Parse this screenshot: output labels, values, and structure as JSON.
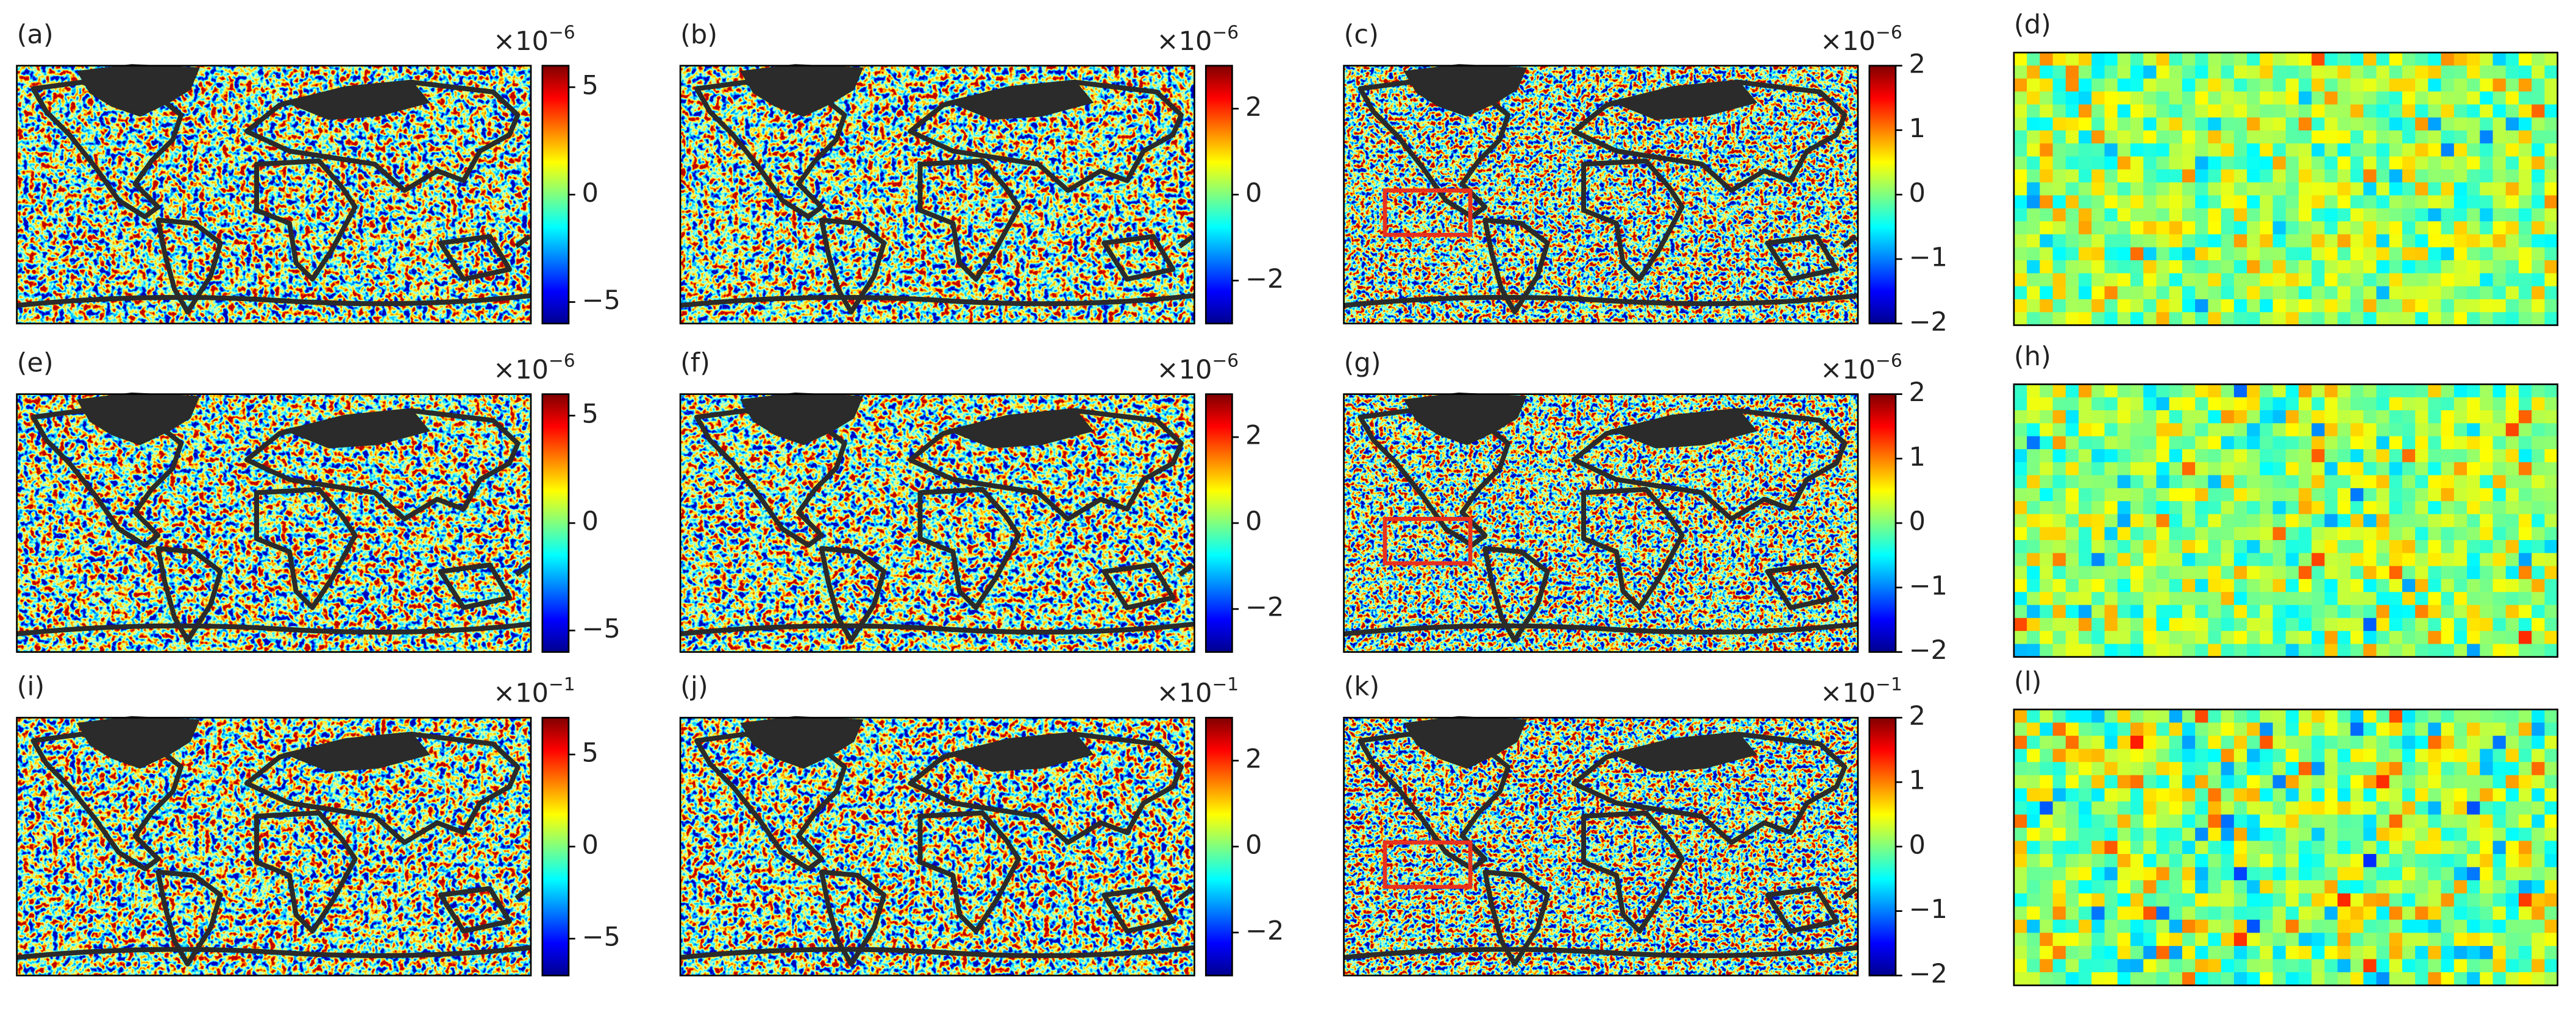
{
  "panels": [
    {
      "label": "(a)",
      "colorbar": {
        "base": "×10",
        "exponent": "−6",
        "clim": [
          -6,
          6
        ],
        "ticks": [
          {
            "value": -5,
            "label": "−5"
          },
          0,
          5
        ]
      }
    },
    {
      "label": "(b)",
      "colorbar": {
        "base": "×10",
        "exponent": "−6",
        "clim": [
          -3,
          3
        ],
        "ticks": [
          {
            "value": -2,
            "label": "−2"
          },
          0,
          2
        ]
      }
    },
    {
      "label": "(c)",
      "colorbar": {
        "base": "×10",
        "exponent": "−6",
        "clim": [
          -2,
          2
        ],
        "ticks": [
          {
            "value": -2,
            "label": "−2"
          },
          {
            "value": -1,
            "label": "−1"
          },
          0,
          1,
          2
        ]
      }
    },
    {
      "label": "(e)",
      "colorbar": {
        "base": "×10",
        "exponent": "−6",
        "clim": [
          -6,
          6
        ],
        "ticks": [
          {
            "value": -5,
            "label": "−5"
          },
          0,
          5
        ]
      }
    },
    {
      "label": "(f)",
      "colorbar": {
        "base": "×10",
        "exponent": "−6",
        "clim": [
          -3,
          3
        ],
        "ticks": [
          {
            "value": -2,
            "label": "−2"
          },
          0,
          2
        ]
      }
    },
    {
      "label": "(g)",
      "colorbar": {
        "base": "×10",
        "exponent": "−6",
        "clim": [
          -2,
          2
        ],
        "ticks": [
          {
            "value": -2,
            "label": "−2"
          },
          {
            "value": -1,
            "label": "−1"
          },
          0,
          1,
          2
        ]
      }
    },
    {
      "label": "(i)",
      "colorbar": {
        "base": "×10",
        "exponent": "−1",
        "clim": [
          -7,
          7
        ],
        "ticks": [
          {
            "value": -5,
            "label": "−5"
          },
          0,
          5
        ]
      }
    },
    {
      "label": "(j)",
      "colorbar": {
        "base": "×10",
        "exponent": "−1",
        "clim": [
          -3,
          3
        ],
        "ticks": [
          {
            "value": -2,
            "label": "−2"
          },
          0,
          2
        ]
      }
    },
    {
      "label": "(k)",
      "colorbar": {
        "base": "×10",
        "exponent": "−1",
        "clim": [
          -2,
          2
        ],
        "ticks": [
          {
            "value": -2,
            "label": "−2"
          },
          {
            "value": -1,
            "label": "−1"
          },
          0,
          1,
          2
        ]
      }
    }
  ],
  "zooms": [
    {
      "label": "(d)"
    },
    {
      "label": "(h)"
    },
    {
      "label": "(l)"
    }
  ]
}
